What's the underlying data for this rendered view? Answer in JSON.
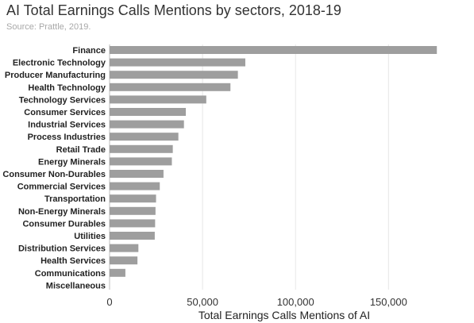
{
  "chart_data": {
    "type": "bar",
    "orientation": "horizontal",
    "title": "AI Total Earnings Calls Mentions by sectors, 2018-19",
    "subtitle": "Source: Prattle, 2019.",
    "xlabel": "Total Earnings Calls Mentions of AI",
    "ylabel": "",
    "xlim": [
      0,
      190000
    ],
    "x_ticks": [
      0,
      50000,
      100000,
      150000
    ],
    "x_tick_labels": [
      "0",
      "50,000",
      "100,000",
      "150,000"
    ],
    "grid": true,
    "bar_color": "#9e9e9e",
    "categories": [
      "Finance",
      "Electronic Technology",
      "Producer Manufacturing",
      "Health Technology",
      "Technology Services",
      "Consumer Services",
      "Industrial Services",
      "Process Industries",
      "Retail Trade",
      "Energy Minerals",
      "Consumer Non-Durables",
      "Commercial Services",
      "Transportation",
      "Non-Energy Minerals",
      "Consumer Durables",
      "Utilities",
      "Distribution Services",
      "Health Services",
      "Communications",
      "Miscellaneous"
    ],
    "values": [
      176000,
      73000,
      69000,
      65000,
      52000,
      41000,
      40000,
      37000,
      34000,
      33500,
      29000,
      27000,
      25000,
      24700,
      24500,
      24300,
      15500,
      15000,
      8500,
      0
    ]
  }
}
